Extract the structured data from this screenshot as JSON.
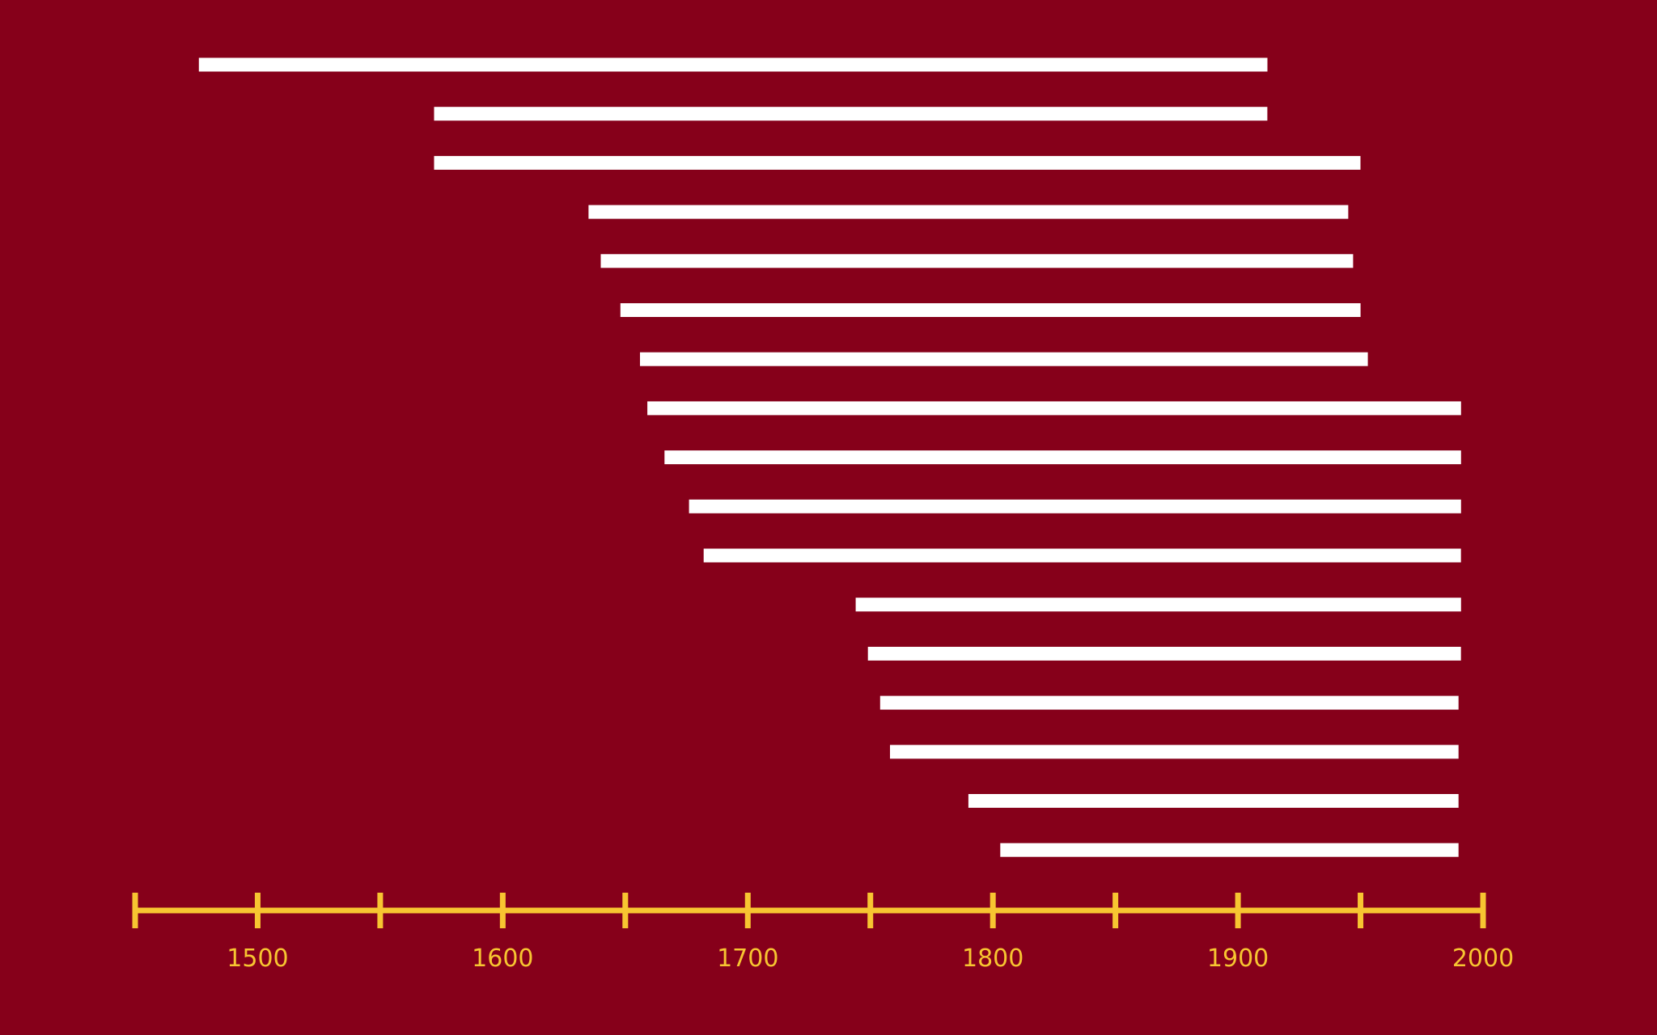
{
  "chart_data": {
    "type": "bar",
    "orientation": "horizontal",
    "layout": "range",
    "title": "",
    "xlabel": "",
    "ylabel": "",
    "xlim": [
      1450,
      2000
    ],
    "x_ticks": [
      1450,
      1500,
      1550,
      1600,
      1650,
      1700,
      1750,
      1800,
      1850,
      1900,
      1950,
      2000
    ],
    "x_tick_labels": [
      {
        "value": 1500,
        "label": "1500"
      },
      {
        "value": 1600,
        "label": "1600"
      },
      {
        "value": 1700,
        "label": "1700"
      },
      {
        "value": 1800,
        "label": "1800"
      },
      {
        "value": 1900,
        "label": "1900"
      },
      {
        "value": 2000,
        "label": "2000"
      }
    ],
    "grid": false,
    "legend": "none",
    "bars": [
      {
        "start": 1476,
        "end": 1912
      },
      {
        "start": 1572,
        "end": 1912
      },
      {
        "start": 1572,
        "end": 1950
      },
      {
        "start": 1635,
        "end": 1945
      },
      {
        "start": 1640,
        "end": 1947
      },
      {
        "start": 1648,
        "end": 1950
      },
      {
        "start": 1656,
        "end": 1953
      },
      {
        "start": 1659,
        "end": 1991
      },
      {
        "start": 1666,
        "end": 1991
      },
      {
        "start": 1676,
        "end": 1991
      },
      {
        "start": 1682,
        "end": 1991
      },
      {
        "start": 1744,
        "end": 1991
      },
      {
        "start": 1749,
        "end": 1991
      },
      {
        "start": 1754,
        "end": 1990
      },
      {
        "start": 1758,
        "end": 1990
      },
      {
        "start": 1790,
        "end": 1990
      },
      {
        "start": 1803,
        "end": 1990
      }
    ],
    "colors": {
      "background": "#86001a",
      "bar": "#ffffff",
      "axis": "#f7c531",
      "tick_label": "#f7c531"
    }
  }
}
